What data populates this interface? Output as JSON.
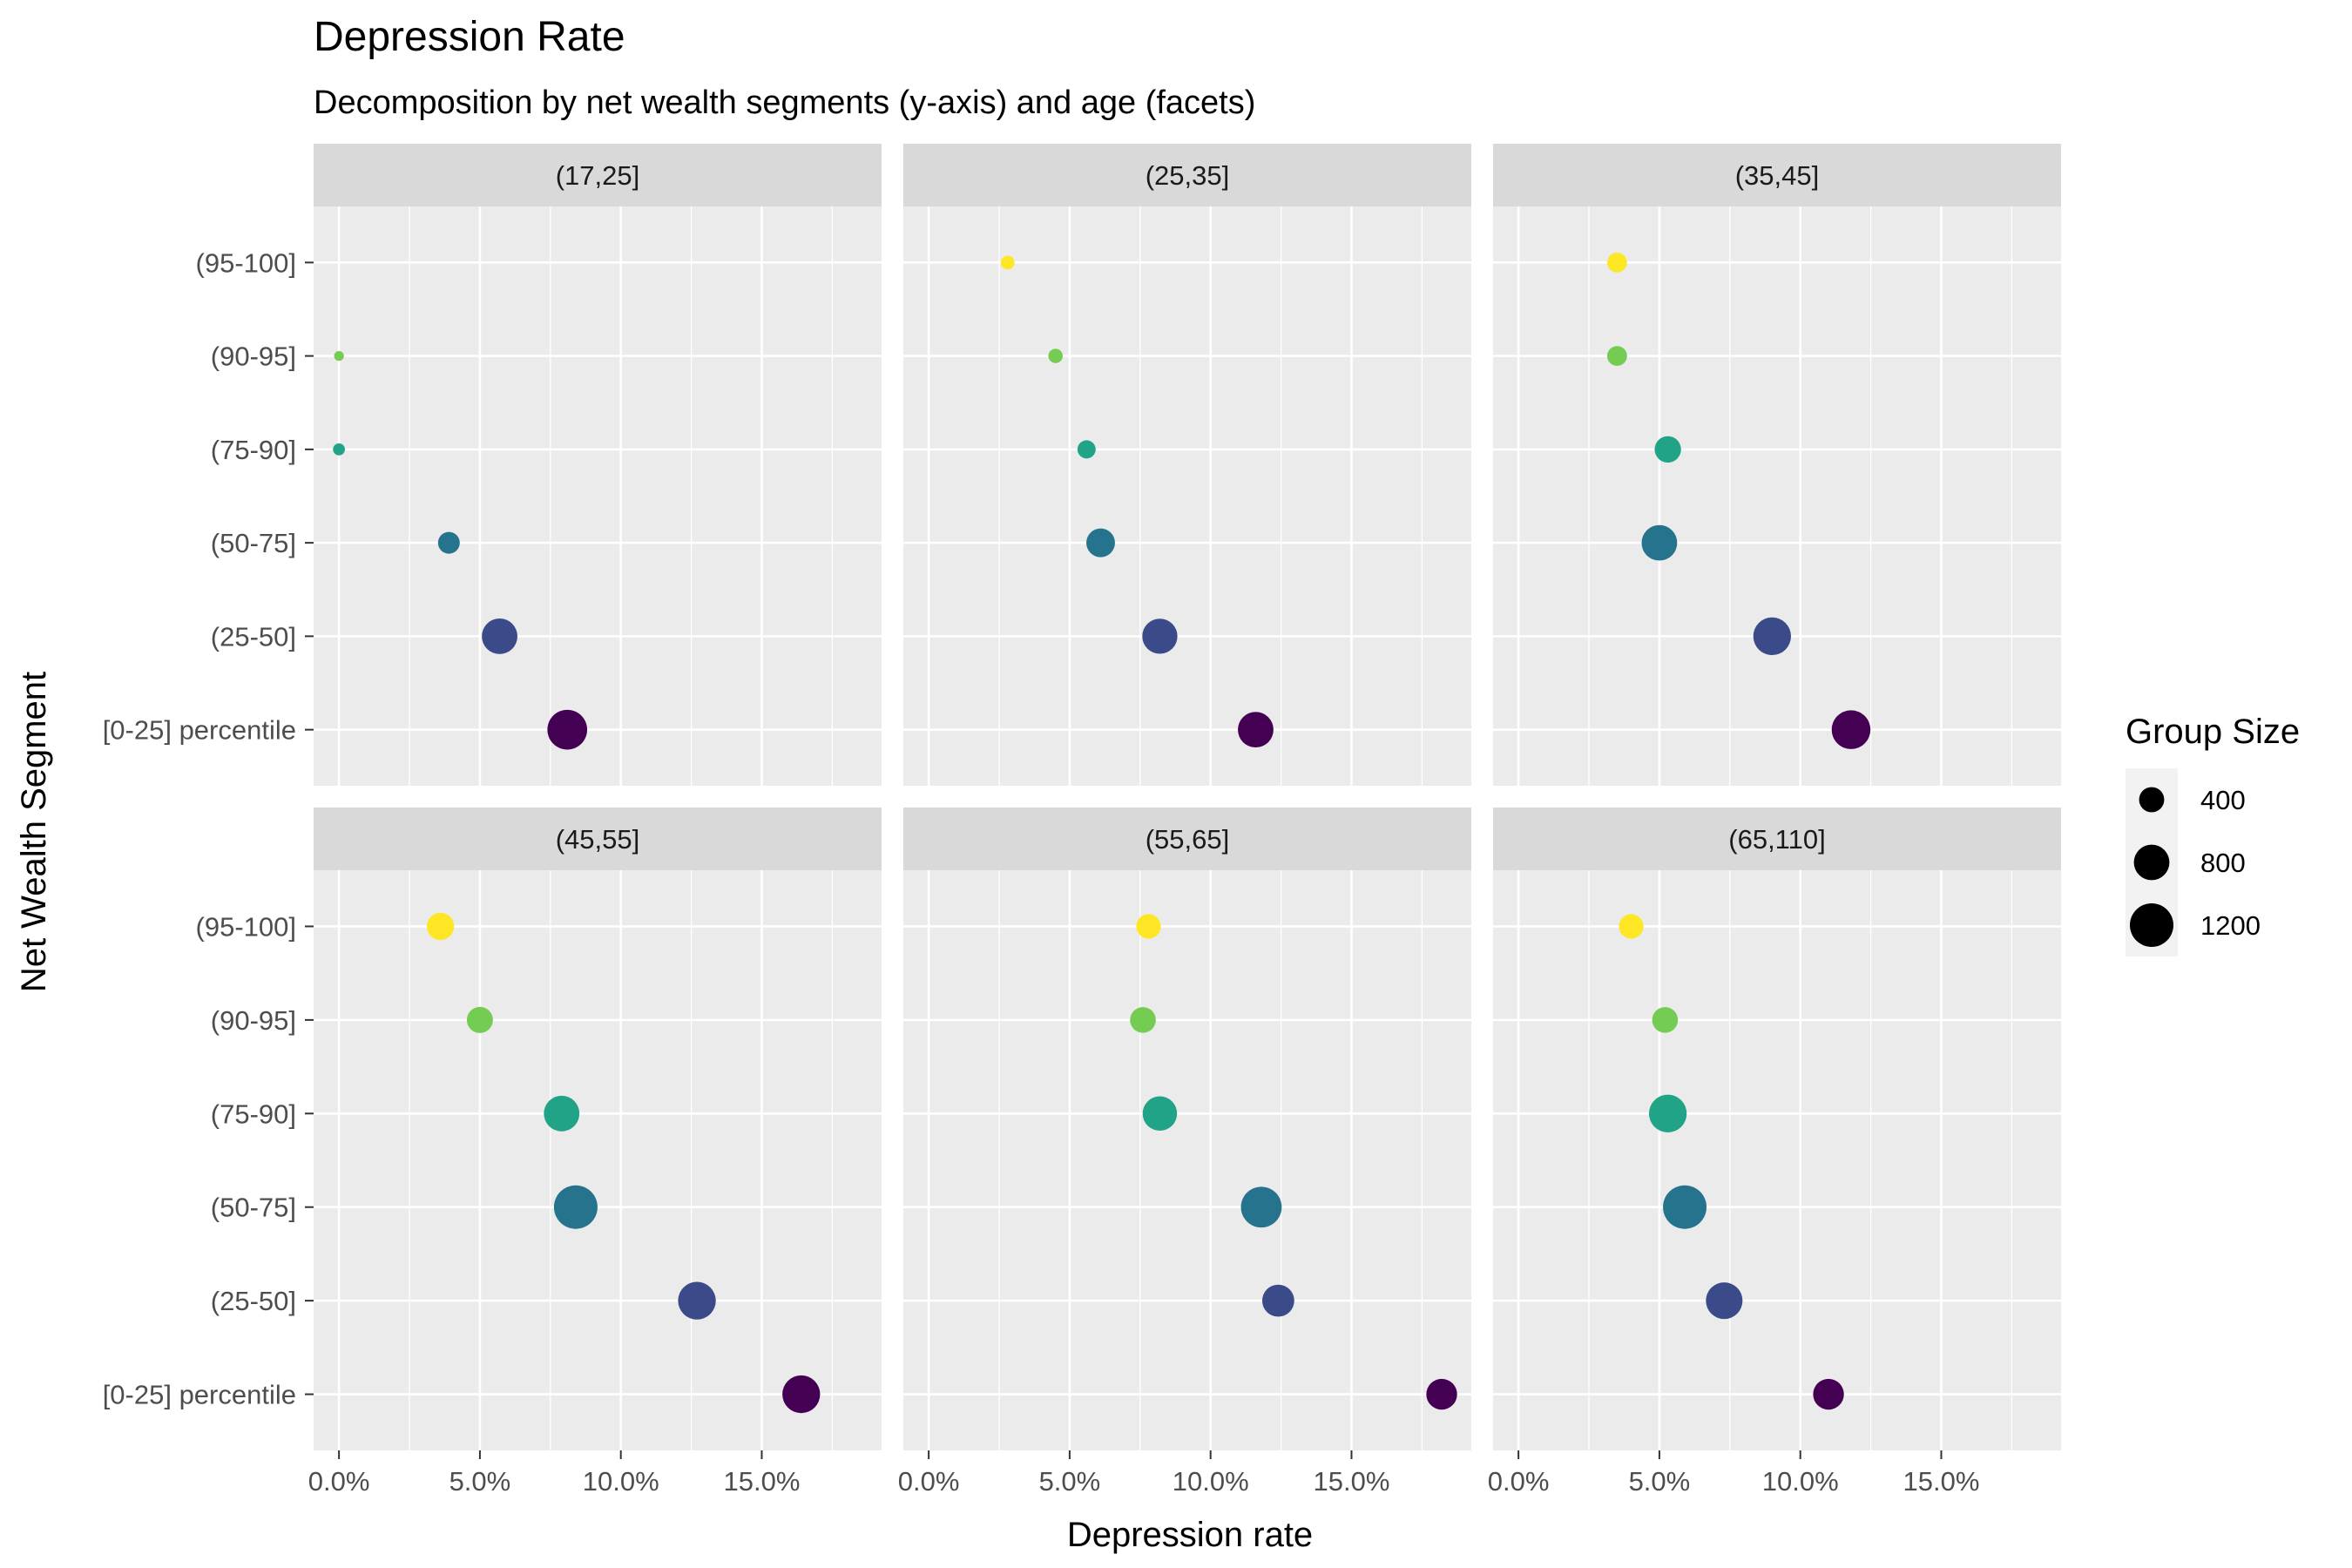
{
  "chart_data": {
    "type": "scatter",
    "title": "Depression Rate",
    "subtitle": "Decomposition by net wealth segments (y-axis) and age (facets)",
    "xlabel": "Depression rate",
    "ylabel": "Net Wealth Segment",
    "xlim": [
      -0.009,
      0.1925
    ],
    "x_ticks": [
      0,
      0.05,
      0.1,
      0.15
    ],
    "x_tick_labels": [
      "0.0%",
      "5.0%",
      "10.0%",
      "15.0%"
    ],
    "y_categories": [
      "[0-25] percentile",
      "(25-50]",
      "(50-75]",
      "(75-90]",
      "(90-95]",
      "(95-100]"
    ],
    "colors": {
      "[0-25] percentile": "#440154",
      "(25-50]": "#3b4a88",
      "(50-75]": "#26738e",
      "(75-90]": "#20a386",
      "(90-95]": "#74cc53",
      "(95-100]": "#fde725"
    },
    "size_legend": {
      "title": "Group Size",
      "values": [
        400,
        800,
        1200
      ],
      "labels": [
        "400",
        "800",
        "1200"
      ]
    },
    "facets": [
      {
        "label": "(17,25]",
        "points": [
          {
            "segment": "(95-100]",
            "x": null,
            "size": null
          },
          {
            "segment": "(90-95]",
            "x": 0.0,
            "size": 60
          },
          {
            "segment": "(75-90]",
            "x": 0.0,
            "size": 90
          },
          {
            "segment": "(50-75]",
            "x": 0.039,
            "size": 300
          },
          {
            "segment": "(25-50]",
            "x": 0.057,
            "size": 800
          },
          {
            "segment": "[0-25] percentile",
            "x": 0.081,
            "size": 1000
          }
        ]
      },
      {
        "label": "(25,35]",
        "points": [
          {
            "segment": "(95-100]",
            "x": 0.028,
            "size": 120
          },
          {
            "segment": "(90-95]",
            "x": 0.045,
            "size": 130
          },
          {
            "segment": "(75-90]",
            "x": 0.056,
            "size": 210
          },
          {
            "segment": "(50-75]",
            "x": 0.061,
            "size": 520
          },
          {
            "segment": "(25-50]",
            "x": 0.082,
            "size": 780
          },
          {
            "segment": "[0-25] percentile",
            "x": 0.116,
            "size": 800
          }
        ]
      },
      {
        "label": "(35,45]",
        "points": [
          {
            "segment": "(95-100]",
            "x": 0.035,
            "size": 250
          },
          {
            "segment": "(90-95]",
            "x": 0.035,
            "size": 250
          },
          {
            "segment": "(75-90]",
            "x": 0.053,
            "size": 440
          },
          {
            "segment": "(50-75]",
            "x": 0.05,
            "size": 800
          },
          {
            "segment": "(25-50]",
            "x": 0.09,
            "size": 900
          },
          {
            "segment": "[0-25] percentile",
            "x": 0.118,
            "size": 950
          }
        ]
      },
      {
        "label": "(45,55]",
        "points": [
          {
            "segment": "(95-100]",
            "x": 0.036,
            "size": 470
          },
          {
            "segment": "(90-95]",
            "x": 0.05,
            "size": 430
          },
          {
            "segment": "(75-90]",
            "x": 0.079,
            "size": 800
          },
          {
            "segment": "(50-75]",
            "x": 0.084,
            "size": 1200
          },
          {
            "segment": "(25-50]",
            "x": 0.127,
            "size": 900
          },
          {
            "segment": "[0-25] percentile",
            "x": 0.164,
            "size": 900
          }
        ]
      },
      {
        "label": "(55,65]",
        "points": [
          {
            "segment": "(95-100]",
            "x": 0.078,
            "size": 380
          },
          {
            "segment": "(90-95]",
            "x": 0.076,
            "size": 420
          },
          {
            "segment": "(75-90]",
            "x": 0.082,
            "size": 750
          },
          {
            "segment": "(50-75]",
            "x": 0.118,
            "size": 1050
          },
          {
            "segment": "(25-50]",
            "x": 0.124,
            "size": 650
          },
          {
            "segment": "[0-25] percentile",
            "x": 0.182,
            "size": 600
          }
        ]
      },
      {
        "label": "(65,110]",
        "points": [
          {
            "segment": "(95-100]",
            "x": 0.04,
            "size": 380
          },
          {
            "segment": "(90-95]",
            "x": 0.052,
            "size": 420
          },
          {
            "segment": "(75-90]",
            "x": 0.053,
            "size": 900
          },
          {
            "segment": "(50-75]",
            "x": 0.059,
            "size": 1200
          },
          {
            "segment": "(25-50]",
            "x": 0.073,
            "size": 850
          },
          {
            "segment": "[0-25] percentile",
            "x": 0.11,
            "size": 600
          }
        ]
      }
    ]
  }
}
